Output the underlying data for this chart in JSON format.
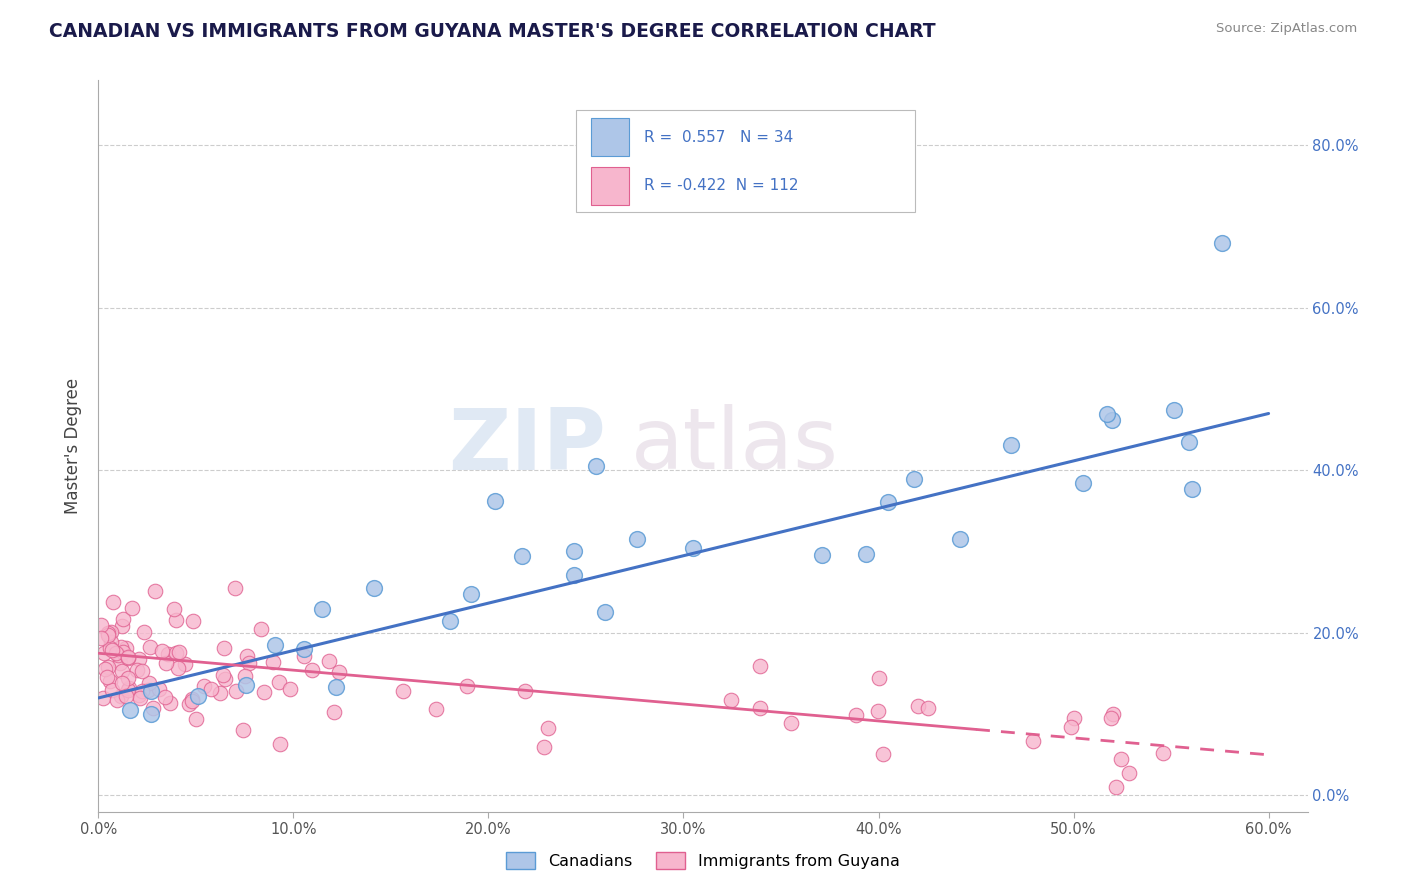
{
  "title": "CANADIAN VS IMMIGRANTS FROM GUYANA MASTER'S DEGREE CORRELATION CHART",
  "source_text": "Source: ZipAtlas.com",
  "ylabel": "Master's Degree",
  "xlim": [
    0.0,
    0.62
  ],
  "ylim": [
    -0.02,
    0.88
  ],
  "ytick_values": [
    0.0,
    0.2,
    0.4,
    0.6,
    0.8
  ],
  "ytick_right_labels": [
    "0.0%",
    "20.0%",
    "40.0%",
    "60.0%",
    "80.0%"
  ],
  "xtick_values": [
    0.0,
    0.1,
    0.2,
    0.3,
    0.4,
    0.5,
    0.6
  ],
  "xtick_labels": [
    "0.0%",
    "10.0%",
    "20.0%",
    "30.0%",
    "40.0%",
    "50.0%",
    "60.0%"
  ],
  "canadians_R": 0.557,
  "canadians_N": 34,
  "guyana_R": -0.422,
  "guyana_N": 112,
  "canadian_fill_color": "#aec6e8",
  "canadian_edge_color": "#5b9bd5",
  "guyana_fill_color": "#f7b6cd",
  "guyana_edge_color": "#e06090",
  "canadian_line_color": "#4472c4",
  "guyana_line_color": "#e06090",
  "background_color": "#ffffff",
  "grid_color": "#c8c8c8",
  "watermark_zip": "ZIP",
  "watermark_atlas": "atlas",
  "canadians_label": "Canadians",
  "guyana_label": "Immigrants from Guyana",
  "canadian_trend_x0": 0.0,
  "canadian_trend_y0": 0.12,
  "canadian_trend_x1": 0.6,
  "canadian_trend_y1": 0.47,
  "guyana_trend_x0": 0.0,
  "guyana_trend_y0": 0.175,
  "guyana_trend_x1": 0.6,
  "guyana_trend_y1": 0.05,
  "guyana_trend_solid_end": 0.45
}
